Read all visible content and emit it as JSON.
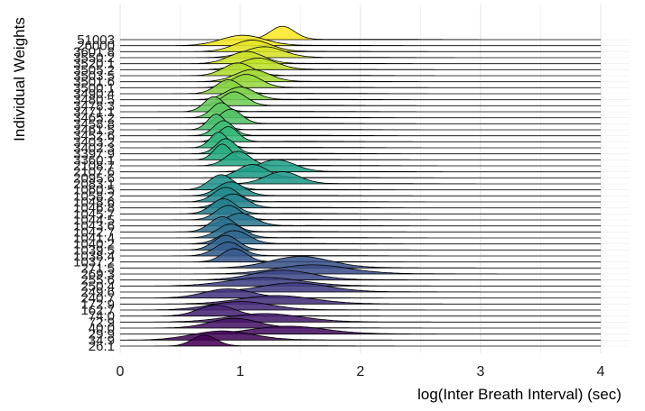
{
  "chart_data": {
    "type": "ridgeline",
    "xlabel": "log(Inter Breath Interval) (sec)",
    "ylabel": "Individual Weights",
    "xlim": [
      0,
      4
    ],
    "x_ticks": [
      0,
      1,
      2,
      3,
      4
    ],
    "grid": true,
    "fill_palette": "viridis (yellow at top to purple at bottom)",
    "categories_bottom_to_top": [
      "26.1",
      "34.9",
      "29.9",
      "40.0",
      "72.9",
      "74.0",
      "162.7",
      "172.9",
      "240.7",
      "249.6",
      "250.4",
      "255.6",
      "269.3",
      "271.5",
      "1037.2",
      "1038.4",
      "1039.5",
      "1040.2",
      "1041.4",
      "1042.7",
      "1043.6",
      "1044.5",
      "1045.7",
      "1046.8",
      "1048.6",
      "1058.2",
      "1060.5",
      "2083.1",
      "2095.6",
      "2107.6",
      "2108.7",
      "3360.1",
      "3397.9",
      "3402.3",
      "3403.2",
      "3452.6",
      "3461.5",
      "3458.8",
      "3465.2",
      "3471.1",
      "3478.3",
      "3480.5",
      "3490.4",
      "3500.1",
      "3501.6",
      "3503.5",
      "3505.2",
      "3520.1",
      "3550.2",
      "3601.8",
      "26000",
      "51003"
    ],
    "series": [
      {
        "peak": 0.7,
        "sd": 0.1,
        "height": 1.8
      },
      {
        "peak": 0.85,
        "sd": 0.25,
        "height": 1.5
      },
      {
        "peak": 1.4,
        "sd": 0.3,
        "height": 1.3
      },
      {
        "peak": 0.95,
        "sd": 0.2,
        "height": 1.6
      },
      {
        "peak": 1.2,
        "sd": 0.3,
        "height": 1.4
      },
      {
        "peak": 0.8,
        "sd": 0.15,
        "height": 1.8
      },
      {
        "peak": 1.0,
        "sd": 0.25,
        "height": 1.4
      },
      {
        "peak": 1.3,
        "sd": 0.3,
        "height": 1.4
      },
      {
        "peak": 0.9,
        "sd": 0.2,
        "height": 1.5
      },
      {
        "peak": 1.45,
        "sd": 0.28,
        "height": 1.5
      },
      {
        "peak": 1.2,
        "sd": 0.3,
        "height": 1.4
      },
      {
        "peak": 1.35,
        "sd": 0.25,
        "height": 1.6
      },
      {
        "peak": 1.6,
        "sd": 0.3,
        "height": 1.5
      },
      {
        "peak": 1.5,
        "sd": 0.25,
        "height": 1.9
      },
      {
        "peak": 0.95,
        "sd": 0.1,
        "height": 2.2
      },
      {
        "peak": 0.9,
        "sd": 0.11,
        "height": 2.3
      },
      {
        "peak": 0.88,
        "sd": 0.1,
        "height": 2.4
      },
      {
        "peak": 0.95,
        "sd": 0.12,
        "height": 2.2
      },
      {
        "peak": 0.92,
        "sd": 0.11,
        "height": 2.3
      },
      {
        "peak": 0.85,
        "sd": 0.1,
        "height": 2.5
      },
      {
        "peak": 1.0,
        "sd": 0.12,
        "height": 2.1
      },
      {
        "peak": 0.9,
        "sd": 0.1,
        "height": 2.4
      },
      {
        "peak": 0.86,
        "sd": 0.1,
        "height": 2.5
      },
      {
        "peak": 0.94,
        "sd": 0.11,
        "height": 2.3
      },
      {
        "peak": 0.88,
        "sd": 0.1,
        "height": 2.4
      },
      {
        "peak": 0.92,
        "sd": 0.11,
        "height": 2.3
      },
      {
        "peak": 0.84,
        "sd": 0.1,
        "height": 2.5
      },
      {
        "peak": 1.35,
        "sd": 0.14,
        "height": 2.0
      },
      {
        "peak": 1.1,
        "sd": 0.12,
        "height": 2.2
      },
      {
        "peak": 1.3,
        "sd": 0.15,
        "height": 2.0
      },
      {
        "peak": 0.98,
        "sd": 0.1,
        "height": 2.4
      },
      {
        "peak": 0.85,
        "sd": 0.07,
        "height": 2.6
      },
      {
        "peak": 0.88,
        "sd": 0.08,
        "height": 2.5
      },
      {
        "peak": 0.82,
        "sd": 0.07,
        "height": 2.6
      },
      {
        "peak": 0.9,
        "sd": 0.08,
        "height": 2.5
      },
      {
        "peak": 0.86,
        "sd": 0.08,
        "height": 2.5
      },
      {
        "peak": 0.8,
        "sd": 0.07,
        "height": 2.6
      },
      {
        "peak": 0.92,
        "sd": 0.09,
        "height": 2.4
      },
      {
        "peak": 0.84,
        "sd": 0.08,
        "height": 2.5
      },
      {
        "peak": 0.78,
        "sd": 0.08,
        "height": 2.5
      },
      {
        "peak": 0.95,
        "sd": 0.1,
        "height": 2.3
      },
      {
        "peak": 1.0,
        "sd": 0.12,
        "height": 2.1
      },
      {
        "peak": 0.9,
        "sd": 0.1,
        "height": 2.3
      },
      {
        "peak": 1.05,
        "sd": 0.12,
        "height": 2.2
      },
      {
        "peak": 1.1,
        "sd": 0.14,
        "height": 2.0
      },
      {
        "peak": 0.98,
        "sd": 0.12,
        "height": 2.1
      },
      {
        "peak": 1.15,
        "sd": 0.15,
        "height": 1.9
      },
      {
        "peak": 1.05,
        "sd": 0.14,
        "height": 2.0
      },
      {
        "peak": 1.2,
        "sd": 0.16,
        "height": 1.8
      },
      {
        "peak": 1.1,
        "sd": 0.15,
        "height": 1.9
      },
      {
        "peak": 1.02,
        "sd": 0.18,
        "height": 1.7
      },
      {
        "peak": 1.35,
        "sd": 0.1,
        "height": 2.2
      }
    ]
  }
}
